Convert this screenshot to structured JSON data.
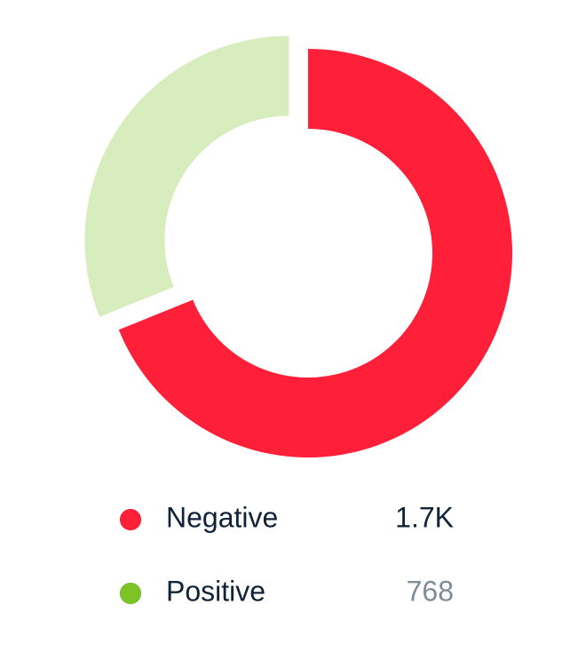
{
  "chart_data": {
    "type": "donut",
    "categories": [
      "Negative",
      "Positive"
    ],
    "values": [
      1700,
      768
    ],
    "value_labels": [
      "1.7K",
      "768"
    ],
    "colors": [
      "#fe1f38",
      "#7ac425"
    ],
    "active_index": 0
  }
}
